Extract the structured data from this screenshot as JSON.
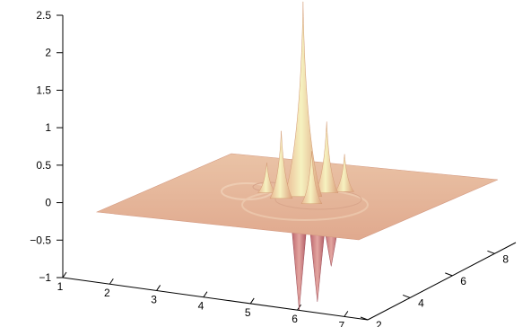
{
  "chart_data": {
    "type": "surface",
    "title": "",
    "xlabel": "",
    "ylabel": "",
    "zlabel": "",
    "z_axis": {
      "range": [
        -1,
        2.5
      ],
      "ticks": [
        2.5,
        2,
        1.5,
        1,
        0.5,
        0,
        -0.5,
        -1
      ],
      "tick_labels": [
        "2.5",
        "2",
        "1.5",
        "1",
        "0.5",
        "0",
        "−0.5",
        "−1"
      ]
    },
    "x_axis": {
      "range": [
        1,
        7.5
      ],
      "ticks": [
        1,
        2,
        3,
        4,
        5,
        6,
        7
      ],
      "tick_labels": [
        "1",
        "2",
        "3",
        "4",
        "5",
        "6",
        "7"
      ]
    },
    "y_axis": {
      "range": [
        2,
        9
      ],
      "ticks": [
        2,
        4,
        6,
        8
      ],
      "tick_labels": [
        "2",
        "4",
        "6",
        "8"
      ]
    },
    "surface_color": "#e8b39a",
    "highlight_color": "#f3efb8",
    "shadow_color": "#c07070",
    "baseline_z": 0,
    "peaks": [
      {
        "x": 4.4,
        "y": 5.6,
        "z": 2.6
      },
      {
        "x": 4.05,
        "y": 5.2,
        "z": 0.9
      },
      {
        "x": 4.7,
        "y": 6.2,
        "z": 0.95
      },
      {
        "x": 3.8,
        "y": 6.7,
        "z": 0.9
      },
      {
        "x": 4.9,
        "y": 5.0,
        "z": 0.7
      },
      {
        "x": 3.5,
        "y": 5.6,
        "z": 0.4
      },
      {
        "x": 5.0,
        "y": 6.5,
        "z": 0.5
      }
    ],
    "troughs": [
      {
        "x": 5.2,
        "y": 3.7,
        "z": -0.75
      },
      {
        "x": 5.4,
        "y": 3.3,
        "z": -1.2
      },
      {
        "x": 5.7,
        "y": 3.6,
        "z": -0.8
      },
      {
        "x": 5.9,
        "y": 3.2,
        "z": -1.05
      },
      {
        "x": 6.1,
        "y": 3.5,
        "z": -0.6
      }
    ],
    "grid": false,
    "legend": "none"
  }
}
